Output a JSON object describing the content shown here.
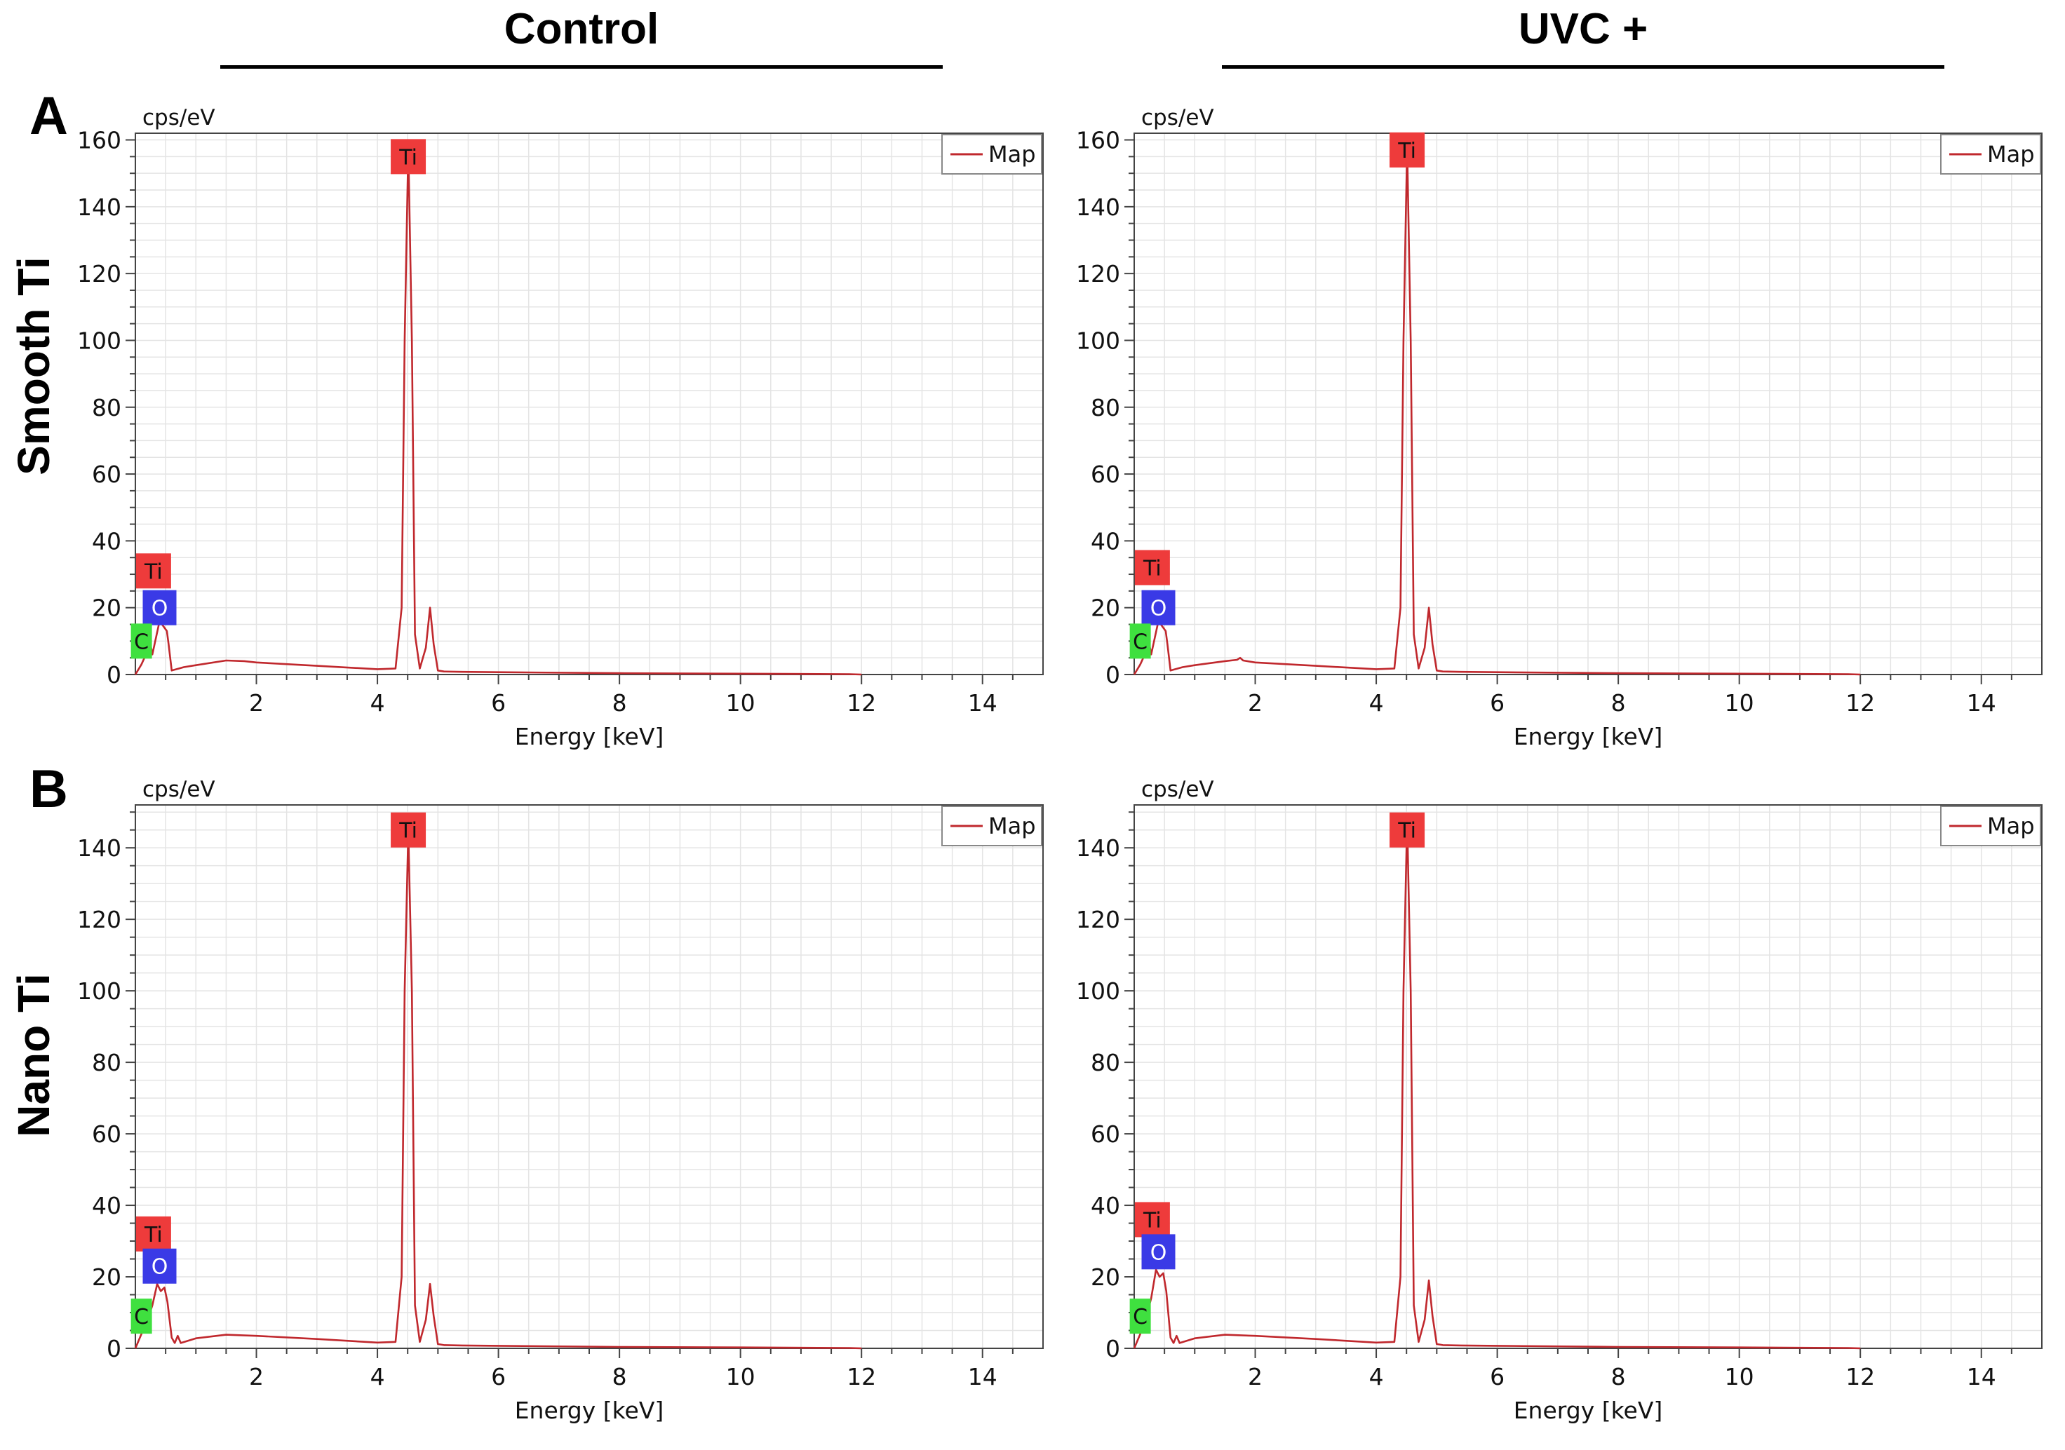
{
  "figure": {
    "columns": [
      "Control",
      "UVC +"
    ],
    "rows": [
      {
        "letter": "A",
        "label": "Smooth Ti"
      },
      {
        "letter": "B",
        "label": "Nano Ti"
      }
    ]
  },
  "colors": {
    "spectrum_line": "#c0282d",
    "grid": "#e4e4e4",
    "axis": "#444444",
    "ti_tag": "#ee3b3b",
    "o_tag": "#3a3ae6",
    "c_tag": "#3fe03f"
  },
  "chart_data": [
    {
      "type": "line",
      "panel": "A-control",
      "title": "",
      "ylabel": "cps/eV",
      "xlabel": "Energy [keV]",
      "xlim": [
        0,
        15
      ],
      "ylim": [
        0,
        162
      ],
      "yticks": [
        0,
        20,
        40,
        60,
        80,
        100,
        120,
        140,
        160
      ],
      "xticks": [
        2,
        4,
        6,
        8,
        10,
        12,
        14
      ],
      "legend": "Map",
      "series": [
        {
          "name": "Map",
          "x": [
            0.0,
            0.1,
            0.25,
            0.28,
            0.4,
            0.52,
            0.55,
            0.6,
            0.8,
            1.0,
            1.5,
            1.8,
            2.0,
            3.0,
            4.0,
            4.3,
            4.4,
            4.45,
            4.51,
            4.57,
            4.62,
            4.7,
            4.8,
            4.87,
            4.93,
            5.0,
            5.1,
            5.4,
            6.0,
            8.0,
            10.0,
            11.8,
            12.0
          ],
          "y": [
            0,
            3,
            9,
            6,
            16,
            13,
            9,
            1.2,
            2.2,
            2.8,
            4.2,
            4.0,
            3.6,
            2.6,
            1.6,
            1.8,
            20,
            100,
            158,
            100,
            12,
            1.8,
            8,
            20,
            9,
            1.2,
            0.9,
            0.8,
            0.7,
            0.4,
            0.25,
            0.1,
            0
          ]
        }
      ],
      "peak_labels": [
        {
          "element": "Ti",
          "energy": 4.51,
          "value": 155
        },
        {
          "element": "Ti",
          "energy": 0.3,
          "value": 31
        },
        {
          "element": "O",
          "energy": 0.4,
          "value": 20
        },
        {
          "element": "C",
          "energy": 0.1,
          "value": 10
        }
      ]
    },
    {
      "type": "line",
      "panel": "A-uvc",
      "title": "",
      "ylabel": "cps/eV",
      "xlabel": "Energy [keV]",
      "xlim": [
        0,
        15
      ],
      "ylim": [
        0,
        162
      ],
      "yticks": [
        0,
        20,
        40,
        60,
        80,
        100,
        120,
        140,
        160
      ],
      "xticks": [
        2,
        4,
        6,
        8,
        10,
        12,
        14
      ],
      "legend": "Map",
      "series": [
        {
          "name": "Map",
          "x": [
            0.0,
            0.1,
            0.25,
            0.28,
            0.4,
            0.52,
            0.55,
            0.6,
            0.8,
            1.0,
            1.5,
            1.7,
            1.75,
            1.8,
            2.0,
            3.0,
            4.0,
            4.3,
            4.4,
            4.45,
            4.51,
            4.57,
            4.62,
            4.7,
            4.8,
            4.87,
            4.93,
            5.0,
            5.1,
            5.4,
            6.0,
            8.0,
            10.0,
            11.8,
            12.0
          ],
          "y": [
            0,
            3,
            9,
            6,
            16,
            13,
            9,
            1.2,
            2.2,
            2.8,
            4.0,
            4.4,
            5.0,
            4.2,
            3.6,
            2.6,
            1.6,
            1.8,
            20,
            100,
            158,
            100,
            12,
            1.8,
            8,
            20,
            9,
            1.2,
            0.9,
            0.8,
            0.7,
            0.4,
            0.25,
            0.1,
            0
          ]
        }
      ],
      "peak_labels": [
        {
          "element": "Ti",
          "energy": 4.51,
          "value": 157
        },
        {
          "element": "Ti",
          "energy": 0.3,
          "value": 32
        },
        {
          "element": "O",
          "energy": 0.4,
          "value": 20
        },
        {
          "element": "C",
          "energy": 0.1,
          "value": 10
        }
      ]
    },
    {
      "type": "line",
      "panel": "B-control",
      "title": "",
      "ylabel": "cps/eV",
      "xlabel": "Energy [keV]",
      "xlim": [
        0,
        15
      ],
      "ylim": [
        0,
        152
      ],
      "yticks": [
        0,
        20,
        40,
        60,
        80,
        100,
        120,
        140
      ],
      "xticks": [
        2,
        4,
        6,
        8,
        10,
        12,
        14
      ],
      "legend": "Map",
      "series": [
        {
          "name": "Map",
          "x": [
            0.0,
            0.1,
            0.2,
            0.28,
            0.36,
            0.42,
            0.48,
            0.53,
            0.6,
            0.65,
            0.7,
            0.75,
            0.85,
            1.0,
            1.5,
            2.0,
            3.0,
            4.0,
            4.3,
            4.4,
            4.45,
            4.51,
            4.57,
            4.62,
            4.7,
            4.8,
            4.87,
            4.93,
            5.0,
            5.1,
            5.4,
            6.0,
            8.0,
            10.0,
            11.8,
            12.0
          ],
          "y": [
            0,
            4,
            8,
            12,
            18,
            16,
            17,
            13,
            3,
            1.5,
            3.5,
            1.5,
            2.0,
            2.8,
            3.8,
            3.5,
            2.6,
            1.6,
            1.8,
            20,
            100,
            145,
            100,
            12,
            1.8,
            8,
            18,
            9,
            1.2,
            0.9,
            0.8,
            0.7,
            0.4,
            0.25,
            0.1,
            0
          ]
        }
      ],
      "peak_labels": [
        {
          "element": "Ti",
          "energy": 4.51,
          "value": 145
        },
        {
          "element": "Ti",
          "energy": 0.3,
          "value": 32
        },
        {
          "element": "O",
          "energy": 0.4,
          "value": 23
        },
        {
          "element": "C",
          "energy": 0.1,
          "value": 9
        }
      ]
    },
    {
      "type": "line",
      "panel": "B-uvc",
      "title": "",
      "ylabel": "cps/eV",
      "xlabel": "Energy [keV]",
      "xlim": [
        0,
        15
      ],
      "ylim": [
        0,
        152
      ],
      "yticks": [
        0,
        20,
        40,
        60,
        80,
        100,
        120,
        140
      ],
      "xticks": [
        2,
        4,
        6,
        8,
        10,
        12,
        14
      ],
      "legend": "Map",
      "series": [
        {
          "name": "Map",
          "x": [
            0.0,
            0.1,
            0.2,
            0.28,
            0.36,
            0.42,
            0.48,
            0.53,
            0.6,
            0.65,
            0.7,
            0.75,
            0.85,
            1.0,
            1.5,
            2.0,
            3.0,
            4.0,
            4.3,
            4.4,
            4.45,
            4.51,
            4.57,
            4.62,
            4.7,
            4.8,
            4.87,
            4.93,
            5.0,
            5.1,
            5.4,
            6.0,
            8.0,
            10.0,
            11.8,
            12.0
          ],
          "y": [
            0,
            4,
            9,
            14,
            22,
            20,
            21,
            16,
            3,
            1.5,
            3.5,
            1.5,
            2.0,
            2.8,
            3.8,
            3.5,
            2.6,
            1.6,
            1.8,
            20,
            100,
            148,
            100,
            12,
            1.8,
            8,
            19,
            9,
            1.2,
            0.9,
            0.8,
            0.7,
            0.4,
            0.25,
            0.1,
            0
          ]
        }
      ],
      "peak_labels": [
        {
          "element": "Ti",
          "energy": 4.51,
          "value": 145
        },
        {
          "element": "Ti",
          "energy": 0.3,
          "value": 36
        },
        {
          "element": "O",
          "energy": 0.4,
          "value": 27
        },
        {
          "element": "C",
          "energy": 0.1,
          "value": 9
        }
      ]
    }
  ]
}
